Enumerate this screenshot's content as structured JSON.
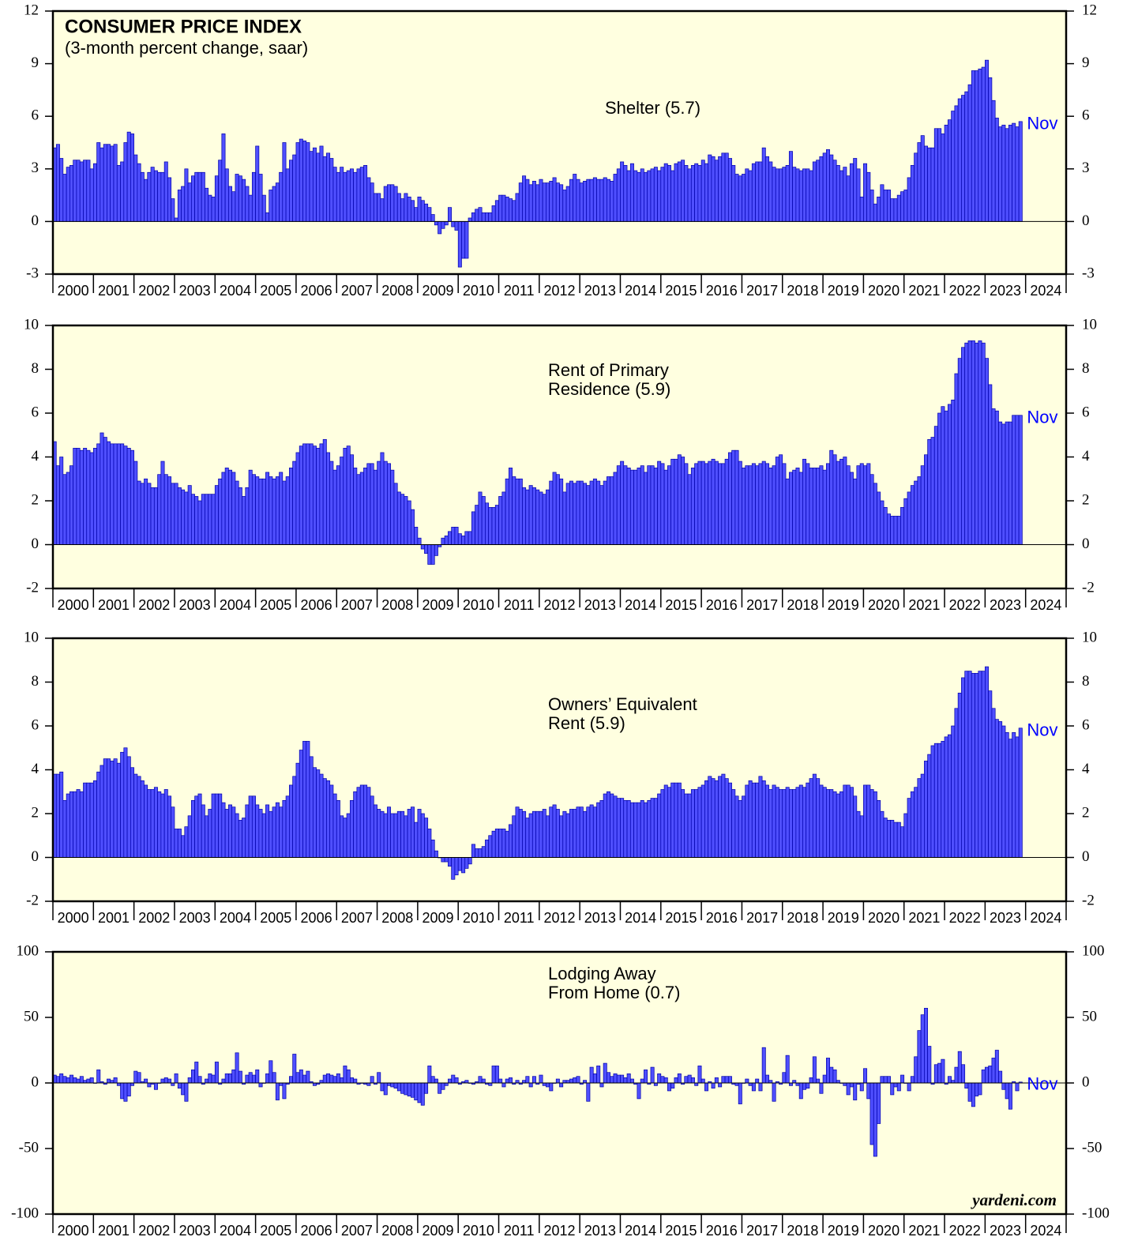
{
  "chart_data": [
    {
      "type": "bar",
      "title": "CONSUMER PRICE INDEX",
      "subtitle": "(3-month percent change, saar)",
      "label": [
        "Shelter (5.7)"
      ],
      "annotation": "Nov",
      "color": "#4f4fff",
      "annotation_color": "#0000ff",
      "background": "#ffffe0",
      "x_labels": [
        "2000",
        "2001",
        "2002",
        "2003",
        "2004",
        "2005",
        "2006",
        "2007",
        "2008",
        "2009",
        "2010",
        "2011",
        "2012",
        "2013",
        "2014",
        "2015",
        "2016",
        "2017",
        "2018",
        "2019",
        "2020",
        "2021",
        "2022",
        "2023",
        "2024"
      ],
      "ylim": [
        -3,
        12
      ],
      "yticks": [
        -3,
        0,
        3,
        6,
        9,
        12
      ],
      "values": [
        4.2,
        4.4,
        3.6,
        2.7,
        3.1,
        3.2,
        3.5,
        3.5,
        3.4,
        3.5,
        3.5,
        3.0,
        3.3,
        4.5,
        4.2,
        4.4,
        4.4,
        4.3,
        4.4,
        3.2,
        3.4,
        4.5,
        5.1,
        5.0,
        3.8,
        3.3,
        2.8,
        2.4,
        2.8,
        3.1,
        2.9,
        2.8,
        2.8,
        3.4,
        2.5,
        1.3,
        0.2,
        1.8,
        2.0,
        3.0,
        2.2,
        2.6,
        2.8,
        2.8,
        2.8,
        1.9,
        1.5,
        1.4,
        2.6,
        3.5,
        5.0,
        3.0,
        2.0,
        1.7,
        2.7,
        2.6,
        2.4,
        2.0,
        1.5,
        2.8,
        4.3,
        2.7,
        1.5,
        0.5,
        1.8,
        2.0,
        2.2,
        2.8,
        4.5,
        3.0,
        3.5,
        3.8,
        4.5,
        4.7,
        4.6,
        4.5,
        4.0,
        4.2,
        3.9,
        4.3,
        3.7,
        3.9,
        3.6,
        3.1,
        2.8,
        3.1,
        2.8,
        2.9,
        3.0,
        2.8,
        3.0,
        3.1,
        3.2,
        2.5,
        2.2,
        1.6,
        1.6,
        1.3,
        2.0,
        2.1,
        2.1,
        2.0,
        1.6,
        1.3,
        1.6,
        1.4,
        1.2,
        0.8,
        1.4,
        1.2,
        1.0,
        0.8,
        0.4,
        -0.2,
        -0.7,
        -0.4,
        -0.2,
        0.8,
        -0.3,
        -0.5,
        -2.6,
        -2.1,
        -2.1,
        0.2,
        0.5,
        0.7,
        0.8,
        0.5,
        0.5,
        0.5,
        0.9,
        1.2,
        1.5,
        1.5,
        1.4,
        1.3,
        1.2,
        1.6,
        2.2,
        2.6,
        2.4,
        2.1,
        2.3,
        2.1,
        2.4,
        2.2,
        2.2,
        2.3,
        2.5,
        2.2,
        2.1,
        1.8,
        2.0,
        2.4,
        2.7,
        2.4,
        2.2,
        2.3,
        2.4,
        2.4,
        2.5,
        2.4,
        2.4,
        2.5,
        2.4,
        2.3,
        2.7,
        3.0,
        3.4,
        3.2,
        2.9,
        3.3,
        2.9,
        2.8,
        3.0,
        2.8,
        2.9,
        3.0,
        3.1,
        2.9,
        3.1,
        3.3,
        3.2,
        2.9,
        3.3,
        3.4,
        3.5,
        3.2,
        3.0,
        3.2,
        3.3,
        3.2,
        3.5,
        3.3,
        3.8,
        3.7,
        3.5,
        3.7,
        3.9,
        3.9,
        3.6,
        3.2,
        2.7,
        2.6,
        2.7,
        3.0,
        2.9,
        3.3,
        3.4,
        3.4,
        4.2,
        3.7,
        3.4,
        3.1,
        3.0,
        3.0,
        3.1,
        3.2,
        4.0,
        3.1,
        3.0,
        2.9,
        3.0,
        3.0,
        2.9,
        3.4,
        3.5,
        3.7,
        3.9,
        4.1,
        3.8,
        3.5,
        3.2,
        2.9,
        3.1,
        2.6,
        3.3,
        3.6,
        3.0,
        1.4,
        3.3,
        2.8,
        1.8,
        1.0,
        1.4,
        2.1,
        1.8,
        1.8,
        1.3,
        1.3,
        1.5,
        1.7,
        1.8,
        2.5,
        3.2,
        3.9,
        4.5,
        4.9,
        4.3,
        4.2,
        4.2,
        5.3,
        5.3,
        5.0,
        5.5,
        5.8,
        6.3,
        6.6,
        7.0,
        7.2,
        7.4,
        7.8,
        8.6,
        8.6,
        8.7,
        8.8,
        9.2,
        8.2,
        6.9,
        5.9,
        5.4,
        5.5,
        5.3,
        5.5,
        5.6,
        5.4,
        5.7
      ]
    },
    {
      "type": "bar",
      "label": [
        "Rent of Primary",
        "Residence (5.9)"
      ],
      "annotation": "Nov",
      "color": "#4f4fff",
      "annotation_color": "#0000ff",
      "background": "#ffffe0",
      "x_labels": [
        "2000",
        "2001",
        "2002",
        "2003",
        "2004",
        "2005",
        "2006",
        "2007",
        "2008",
        "2009",
        "2010",
        "2011",
        "2012",
        "2013",
        "2014",
        "2015",
        "2016",
        "2017",
        "2018",
        "2019",
        "2020",
        "2021",
        "2022",
        "2023",
        "2024"
      ],
      "ylim": [
        -2,
        10
      ],
      "yticks": [
        -2,
        0,
        2,
        4,
        6,
        8,
        10
      ],
      "values": [
        4.7,
        3.6,
        4.0,
        3.2,
        3.3,
        3.6,
        4.4,
        4.4,
        4.3,
        4.4,
        4.3,
        4.2,
        4.4,
        4.6,
        5.1,
        4.9,
        4.7,
        4.6,
        4.6,
        4.6,
        4.6,
        4.5,
        4.4,
        4.3,
        3.8,
        2.9,
        2.8,
        3.0,
        2.8,
        2.6,
        2.6,
        3.2,
        3.8,
        3.2,
        3.1,
        2.8,
        2.8,
        2.6,
        2.5,
        2.4,
        2.7,
        2.3,
        2.2,
        2.0,
        2.3,
        2.3,
        2.3,
        2.3,
        2.7,
        3.0,
        3.3,
        3.5,
        3.4,
        3.3,
        2.9,
        2.6,
        2.2,
        2.6,
        3.4,
        3.2,
        3.1,
        3.0,
        3.0,
        3.3,
        3.1,
        3.0,
        3.1,
        3.3,
        2.9,
        3.1,
        3.5,
        3.8,
        4.2,
        4.5,
        4.6,
        4.6,
        4.6,
        4.5,
        4.4,
        4.6,
        4.8,
        4.2,
        3.8,
        3.4,
        3.6,
        4.0,
        4.4,
        4.5,
        4.1,
        3.5,
        3.2,
        3.3,
        3.5,
        3.7,
        3.7,
        3.4,
        3.8,
        4.2,
        3.8,
        3.7,
        3.4,
        2.8,
        2.4,
        2.3,
        2.2,
        2.0,
        1.6,
        0.8,
        0.3,
        -0.2,
        -0.4,
        -0.9,
        -0.9,
        -0.5,
        -0.1,
        0.3,
        0.4,
        0.6,
        0.8,
        0.8,
        0.5,
        0.4,
        0.6,
        0.6,
        1.5,
        1.8,
        2.4,
        2.2,
        1.9,
        1.7,
        1.7,
        1.8,
        2.2,
        2.4,
        3.0,
        3.5,
        3.1,
        3.0,
        3.0,
        2.6,
        2.5,
        2.7,
        2.6,
        2.5,
        2.4,
        2.3,
        2.5,
        2.9,
        3.3,
        3.2,
        3.0,
        2.4,
        2.8,
        2.9,
        2.8,
        2.9,
        2.9,
        2.8,
        2.7,
        2.9,
        3.0,
        2.9,
        2.7,
        2.9,
        3.1,
        3.1,
        3.3,
        3.6,
        3.8,
        3.6,
        3.5,
        3.4,
        3.4,
        3.5,
        3.6,
        3.3,
        3.6,
        3.6,
        3.5,
        3.8,
        3.7,
        3.4,
        3.6,
        3.9,
        3.9,
        4.1,
        4.0,
        3.7,
        3.2,
        3.5,
        3.7,
        3.8,
        3.8,
        3.7,
        3.8,
        3.9,
        3.8,
        3.7,
        3.7,
        3.9,
        4.2,
        4.3,
        4.3,
        3.8,
        3.5,
        3.6,
        3.6,
        3.7,
        3.6,
        3.7,
        3.8,
        3.7,
        3.5,
        3.6,
        4.0,
        4.1,
        3.7,
        3.0,
        3.3,
        3.4,
        3.5,
        3.3,
        3.9,
        3.7,
        3.5,
        3.5,
        3.5,
        3.6,
        3.4,
        3.7,
        4.3,
        4.1,
        3.8,
        3.9,
        4.0,
        3.6,
        3.3,
        3.0,
        3.6,
        3.7,
        3.6,
        3.7,
        3.2,
        2.8,
        2.4,
        2.0,
        1.7,
        1.4,
        1.3,
        1.3,
        1.3,
        1.7,
        2.1,
        2.4,
        2.7,
        2.9,
        3.1,
        3.6,
        4.1,
        4.8,
        4.9,
        5.4,
        6.0,
        6.3,
        6.1,
        6.4,
        6.6,
        7.8,
        8.5,
        9.0,
        9.2,
        9.3,
        9.3,
        9.2,
        9.3,
        9.2,
        8.5,
        7.3,
        6.2,
        6.1,
        5.6,
        5.5,
        5.6,
        5.6,
        5.9,
        5.9,
        5.9
      ]
    },
    {
      "type": "bar",
      "label": [
        "Owners’ Equivalent",
        "Rent (5.9)"
      ],
      "annotation": "Nov",
      "color": "#4f4fff",
      "annotation_color": "#0000ff",
      "background": "#ffffe0",
      "x_labels": [
        "2000",
        "2001",
        "2002",
        "2003",
        "2004",
        "2005",
        "2006",
        "2007",
        "2008",
        "2009",
        "2010",
        "2011",
        "2012",
        "2013",
        "2014",
        "2015",
        "2016",
        "2017",
        "2018",
        "2019",
        "2020",
        "2021",
        "2022",
        "2023",
        "2024"
      ],
      "ylim": [
        -2,
        10
      ],
      "yticks": [
        -2,
        0,
        2,
        4,
        6,
        8,
        10
      ],
      "values": [
        3.8,
        3.8,
        3.9,
        2.6,
        2.9,
        3.0,
        3.0,
        3.1,
        3.0,
        3.4,
        3.4,
        3.4,
        3.5,
        3.9,
        4.2,
        4.5,
        4.5,
        4.4,
        4.5,
        4.3,
        4.8,
        5.0,
        4.6,
        4.1,
        3.8,
        3.7,
        3.5,
        3.3,
        3.1,
        3.1,
        3.2,
        3.0,
        2.9,
        3.1,
        2.8,
        2.3,
        1.3,
        1.3,
        1.0,
        1.4,
        1.9,
        2.6,
        2.8,
        2.9,
        2.4,
        1.9,
        2.2,
        2.9,
        2.9,
        2.9,
        2.5,
        2.2,
        2.4,
        2.3,
        2.0,
        1.7,
        1.8,
        2.4,
        2.8,
        2.8,
        2.4,
        2.2,
        2.0,
        2.4,
        2.1,
        2.3,
        2.5,
        2.3,
        2.6,
        2.8,
        3.3,
        3.7,
        4.3,
        4.9,
        5.3,
        5.3,
        4.6,
        4.1,
        4.0,
        3.8,
        3.6,
        3.5,
        3.3,
        2.9,
        2.6,
        1.9,
        1.8,
        2.0,
        2.6,
        3.0,
        3.2,
        3.3,
        3.3,
        3.2,
        2.8,
        2.4,
        2.2,
        2.1,
        2.0,
        2.3,
        2.0,
        2.0,
        2.1,
        2.1,
        1.9,
        2.2,
        2.3,
        1.6,
        2.2,
        2.0,
        1.8,
        1.3,
        0.8,
        0.3,
        0.0,
        -0.2,
        -0.2,
        -0.4,
        -1.0,
        -0.8,
        -0.6,
        -0.7,
        -0.5,
        -0.3,
        0.6,
        0.4,
        0.4,
        0.5,
        0.8,
        1.0,
        1.2,
        1.3,
        1.3,
        1.3,
        1.2,
        1.5,
        1.9,
        2.3,
        2.2,
        2.1,
        1.8,
        2.0,
        2.1,
        2.1,
        2.1,
        2.2,
        1.9,
        2.3,
        2.4,
        2.2,
        1.9,
        2.1,
        2.0,
        2.2,
        2.2,
        2.3,
        2.3,
        2.1,
        2.3,
        2.4,
        2.3,
        2.5,
        2.6,
        2.9,
        3.0,
        2.9,
        2.8,
        2.7,
        2.7,
        2.6,
        2.6,
        2.5,
        2.5,
        2.5,
        2.6,
        2.5,
        2.6,
        2.7,
        2.7,
        2.9,
        3.1,
        3.3,
        3.2,
        3.4,
        3.4,
        3.4,
        3.1,
        2.9,
        2.9,
        3.1,
        3.1,
        3.2,
        3.3,
        3.5,
        3.7,
        3.6,
        3.5,
        3.7,
        3.8,
        3.6,
        3.4,
        3.1,
        2.8,
        2.6,
        2.8,
        3.3,
        3.5,
        3.4,
        3.4,
        3.7,
        3.5,
        3.3,
        3.1,
        3.3,
        3.2,
        3.1,
        3.1,
        3.2,
        3.1,
        3.1,
        3.2,
        3.3,
        3.2,
        3.4,
        3.6,
        3.8,
        3.6,
        3.3,
        3.2,
        3.1,
        3.1,
        3.0,
        2.9,
        3.0,
        3.3,
        3.3,
        3.2,
        2.8,
        2.1,
        1.9,
        3.3,
        3.3,
        3.1,
        3.0,
        2.6,
        2.1,
        1.8,
        1.7,
        1.7,
        1.6,
        1.6,
        1.4,
        2.0,
        2.7,
        3.0,
        3.2,
        3.6,
        3.8,
        4.4,
        4.7,
        5.1,
        5.2,
        5.2,
        5.3,
        5.5,
        5.6,
        6.0,
        6.8,
        7.5,
        8.2,
        8.5,
        8.5,
        8.4,
        8.4,
        8.5,
        8.5,
        8.7,
        7.6,
        6.8,
        6.3,
        6.2,
        6.0,
        5.7,
        5.4,
        5.7,
        5.5,
        5.9
      ]
    },
    {
      "type": "bar",
      "label": [
        "Lodging Away",
        "From Home (0.7)"
      ],
      "annotation": "Nov",
      "color": "#4f4fff",
      "annotation_color": "#0000ff",
      "background": "#ffffe0",
      "source": "yardeni.com",
      "x_labels": [
        "2000",
        "2001",
        "2002",
        "2003",
        "2004",
        "2005",
        "2006",
        "2007",
        "2008",
        "2009",
        "2010",
        "2011",
        "2012",
        "2013",
        "2014",
        "2015",
        "2016",
        "2017",
        "2018",
        "2019",
        "2020",
        "2021",
        "2022",
        "2023",
        "2024"
      ],
      "ylim": [
        -100,
        100
      ],
      "yticks": [
        -100,
        -50,
        0,
        50,
        100
      ],
      "values": [
        6,
        5,
        7,
        5,
        4,
        6,
        4,
        3,
        5,
        2,
        3,
        4,
        0,
        10,
        1,
        -1,
        3,
        2,
        4,
        -2,
        -12,
        -14,
        -10,
        -2,
        9,
        8,
        1,
        3,
        -3,
        -1,
        -5,
        0,
        3,
        4,
        3,
        -2,
        7,
        -4,
        -9,
        -14,
        4,
        10,
        16,
        5,
        -1,
        3,
        7,
        6,
        16,
        -1,
        3,
        7,
        7,
        10,
        23,
        9,
        -1,
        6,
        8,
        6,
        10,
        -3,
        0,
        7,
        17,
        8,
        -13,
        -2,
        -12,
        -1,
        5,
        22,
        8,
        10,
        6,
        9,
        1,
        -2,
        -1,
        2,
        6,
        7,
        6,
        5,
        7,
        4,
        13,
        10,
        4,
        3,
        -1,
        0,
        -1,
        -2,
        5,
        -1,
        8,
        -6,
        -9,
        -2,
        -3,
        -4,
        -6,
        -8,
        -9,
        -10,
        -11,
        -13,
        -15,
        -17,
        -8,
        13,
        5,
        3,
        -8,
        -5,
        -2,
        3,
        6,
        4,
        -1,
        1,
        2,
        0,
        -1,
        1,
        5,
        3,
        -1,
        -2,
        13,
        13,
        3,
        -3,
        3,
        4,
        -1,
        2,
        -1,
        2,
        5,
        -3,
        5,
        -1,
        6,
        -2,
        -3,
        -6,
        0,
        3,
        -3,
        2,
        2,
        3,
        4,
        5,
        -1,
        2,
        -14,
        12,
        7,
        13,
        -3,
        15,
        8,
        5,
        7,
        6,
        6,
        4,
        7,
        3,
        -1,
        -12,
        3,
        10,
        -1,
        12,
        -2,
        7,
        5,
        4,
        -6,
        -4,
        4,
        7,
        -1,
        5,
        6,
        4,
        -2,
        13,
        3,
        -6,
        1,
        -4,
        4,
        -3,
        5,
        5,
        5,
        -1,
        -2,
        -16,
        0,
        3,
        -2,
        -6,
        3,
        -6,
        27,
        6,
        2,
        -14,
        1,
        -1,
        8,
        21,
        -2,
        2,
        -2,
        -12,
        -5,
        -4,
        4,
        20,
        3,
        -8,
        6,
        19,
        12,
        10,
        2,
        0,
        -2,
        -9,
        -3,
        -13,
        -1,
        -6,
        11,
        -12,
        -47,
        -56,
        -31,
        5,
        5,
        5,
        -9,
        -3,
        -6,
        6,
        0,
        -6,
        5,
        20,
        40,
        52,
        57,
        28,
        -1,
        14,
        15,
        18,
        -1,
        5,
        2,
        12,
        24,
        14,
        -4,
        -14,
        -18,
        -10,
        -9,
        10,
        12,
        13,
        19,
        25,
        9,
        -5,
        -12,
        -20,
        1,
        -6,
        0.7
      ]
    }
  ]
}
